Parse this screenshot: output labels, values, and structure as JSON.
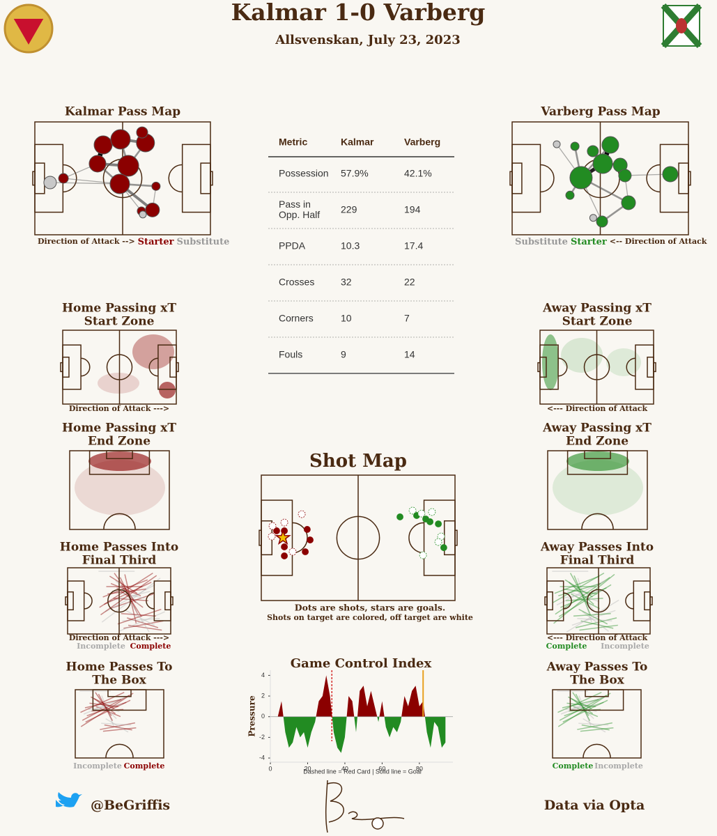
{
  "header": {
    "title": "Kalmar 1-0 Varberg",
    "subtitle": "Allsvenskan, July 23, 2023"
  },
  "colors": {
    "home": "#8b0000",
    "away": "#228b22",
    "substitute": "#c8c8c8",
    "ink": "#4a2a12"
  },
  "pass_maps": [
    {
      "title": "Kalmar Pass Map",
      "caption": [
        "Direction of Attack -->",
        "Starter",
        "Substitute"
      ],
      "nodes": [
        [
          8.7,
          53.7,
          9,
          "sub"
        ],
        [
          16.3,
          50,
          7,
          "starter"
        ],
        [
          35.7,
          37,
          12,
          "starter"
        ],
        [
          38.9,
          20.4,
          13,
          "starter"
        ],
        [
          48.8,
          15.4,
          14,
          "starter"
        ],
        [
          53.2,
          38.9,
          15,
          "starter"
        ],
        [
          48.4,
          54.9,
          14,
          "starter"
        ],
        [
          63,
          18.5,
          13,
          "starter"
        ],
        [
          61.1,
          9.3,
          8,
          "starter"
        ],
        [
          69,
          57,
          6,
          "starter"
        ],
        [
          67,
          78,
          10,
          "starter"
        ],
        [
          60.7,
          79,
          6,
          "starter"
        ],
        [
          61.5,
          82,
          5,
          "sub"
        ]
      ],
      "edges": [
        [
          2,
          3,
          5
        ],
        [
          3,
          4,
          3
        ],
        [
          4,
          7,
          3
        ],
        [
          2,
          5,
          3
        ],
        [
          4,
          5,
          2
        ],
        [
          5,
          6,
          3
        ],
        [
          6,
          10,
          3
        ],
        [
          5,
          7,
          2
        ],
        [
          1,
          6,
          1
        ],
        [
          6,
          9,
          2
        ],
        [
          2,
          6,
          2
        ],
        [
          0,
          6,
          1
        ],
        [
          1,
          2,
          1
        ],
        [
          9,
          10,
          1
        ],
        [
          6,
          11,
          1
        ]
      ]
    },
    {
      "title": "Varberg Pass Map",
      "caption": [
        "Substitute",
        "Starter",
        "<-- Direction of Attack"
      ],
      "nodes": [
        [
          25.3,
          19.8,
          5,
          "sub"
        ],
        [
          35.6,
          21.6,
          6,
          "starter"
        ],
        [
          45.8,
          25.9,
          8,
          "starter"
        ],
        [
          55.7,
          20.4,
          12,
          "starter"
        ],
        [
          51.4,
          37,
          14,
          "starter"
        ],
        [
          61.3,
          38.3,
          10,
          "starter"
        ],
        [
          39.1,
          49.4,
          16,
          "starter"
        ],
        [
          32.8,
          65,
          6,
          "starter"
        ],
        [
          64,
          47.5,
          9,
          "starter"
        ],
        [
          89.7,
          46.3,
          11,
          "starter"
        ],
        [
          66,
          71.6,
          10,
          "starter"
        ],
        [
          51,
          88.3,
          8,
          "starter"
        ],
        [
          46,
          85,
          5,
          "sub"
        ]
      ],
      "edges": [
        [
          3,
          4,
          5
        ],
        [
          4,
          6,
          4
        ],
        [
          2,
          4,
          3
        ],
        [
          4,
          5,
          2
        ],
        [
          6,
          7,
          2
        ],
        [
          5,
          8,
          2
        ],
        [
          8,
          9,
          1
        ],
        [
          6,
          10,
          2
        ],
        [
          10,
          11,
          2
        ],
        [
          1,
          6,
          2
        ],
        [
          0,
          6,
          1
        ],
        [
          8,
          10,
          1
        ],
        [
          6,
          11,
          1
        ],
        [
          3,
          6,
          2
        ]
      ]
    }
  ],
  "table": {
    "header": [
      "Metric",
      "Kalmar",
      "Varberg"
    ],
    "rows": [
      [
        "Possession",
        "57.9%",
        "42.1%"
      ],
      [
        "Pass in Opp. Half",
        "229",
        "194"
      ],
      [
        "PPDA",
        "10.3",
        "17.4"
      ],
      [
        "Crosses",
        "32",
        "22"
      ],
      [
        "Corners",
        "10",
        "7"
      ],
      [
        "Fouls",
        "9",
        "14"
      ]
    ]
  },
  "panels": {
    "home": [
      {
        "title": [
          "Home Passing xT",
          "Start Zone"
        ],
        "caption": "Direction of Attack --->"
      },
      {
        "title": [
          "Home Passing xT",
          "End Zone"
        ]
      },
      {
        "title": [
          "Home Passes Into",
          "Final Third"
        ],
        "caption": "Direction of Attack --->",
        "legend": [
          "Incomplete",
          "Complete"
        ]
      },
      {
        "title": [
          "Home Passes To",
          "The Box"
        ],
        "legend": [
          "Incomplete",
          "Complete"
        ]
      }
    ],
    "away": [
      {
        "title": [
          "Away Passing xT",
          "Start Zone"
        ],
        "caption": "<--- Direction of Attack"
      },
      {
        "title": [
          "Away Passing xT",
          "End Zone"
        ]
      },
      {
        "title": [
          "Away Passes Into",
          "Final Third"
        ],
        "caption": "<--- Direction of Attack",
        "legend": [
          "Complete",
          "Incomplete"
        ]
      },
      {
        "title": [
          "Away Passes To",
          "The Box"
        ],
        "legend": [
          "Complete",
          "Incomplete"
        ]
      }
    ]
  },
  "shot_map": {
    "title": "Shot Map",
    "notes": [
      "Dots are shots, stars are goals.",
      "Shots on target are colored, off target are white"
    ],
    "home": [
      [
        11.9,
        37.8,
        "off"
      ],
      [
        11.9,
        44.4,
        "on"
      ],
      [
        7.9,
        44.4,
        "on"
      ],
      [
        11.2,
        50,
        "goal"
      ],
      [
        11.9,
        57.2,
        "on"
      ],
      [
        11.9,
        64.4,
        "on"
      ],
      [
        16.2,
        61.1,
        "off"
      ],
      [
        20.9,
        31.1,
        "off"
      ],
      [
        23.7,
        43.3,
        "on"
      ],
      [
        25.2,
        51.7,
        "on"
      ],
      [
        22.7,
        61.1,
        "on"
      ],
      [
        5.4,
        48.9,
        "off"
      ],
      [
        5.8,
        40.6,
        "off"
      ]
    ],
    "away": [
      [
        71.6,
        33.3,
        "on"
      ],
      [
        78.1,
        28.3,
        "off"
      ],
      [
        80.2,
        32.2,
        "on"
      ],
      [
        82.7,
        30.6,
        "off"
      ],
      [
        84.9,
        35,
        "on"
      ],
      [
        88.1,
        29.4,
        "off"
      ],
      [
        91.4,
        38.9,
        "on"
      ],
      [
        87.1,
        37.2,
        "on"
      ],
      [
        94.2,
        57.8,
        "on"
      ],
      [
        92.8,
        48.9,
        "off"
      ],
      [
        83.5,
        63.9,
        "off"
      ],
      [
        91.4,
        53.3,
        "off"
      ]
    ]
  },
  "chart_data": {
    "type": "area",
    "title": "Game Control Index",
    "y_label": "Pressure",
    "note": "Dashed line = Red Card | Solid line = Goal",
    "x": [
      0,
      2,
      4,
      6,
      8,
      10,
      12,
      14,
      16,
      18,
      20,
      22,
      24,
      26,
      28,
      30,
      32,
      34,
      36,
      38,
      40,
      42,
      44,
      46,
      48,
      50,
      52,
      54,
      56,
      58,
      60,
      62,
      64,
      66,
      68,
      70,
      72,
      74,
      76,
      78,
      80,
      82,
      84,
      86,
      88,
      90,
      92,
      94
    ],
    "values": [
      0,
      0,
      0,
      1.5,
      -1.5,
      -3,
      -2.5,
      -1,
      -2,
      -1.5,
      -3,
      -1.5,
      -0.5,
      1.5,
      2,
      4,
      2,
      -1.5,
      -3,
      -3.5,
      -2,
      2,
      1.5,
      -1.5,
      2.5,
      3,
      1,
      2.5,
      1,
      -0.5,
      1.5,
      -1,
      -2,
      -1,
      -1.5,
      -0.5,
      2,
      1,
      2.5,
      3,
      1,
      1.5,
      -1.5,
      -3,
      -0.5,
      -1,
      -3,
      -2.5
    ],
    "xlim": [
      0,
      98
    ],
    "ylim": [
      -4.4,
      4.5
    ],
    "xticks": [
      0,
      20,
      40,
      60,
      80
    ],
    "yticks": [
      -4,
      -2,
      0,
      2,
      4
    ],
    "red_card": 33,
    "goal": 82
  },
  "footer": {
    "handle": "@BeGriffis",
    "source": "Data via Opta"
  }
}
